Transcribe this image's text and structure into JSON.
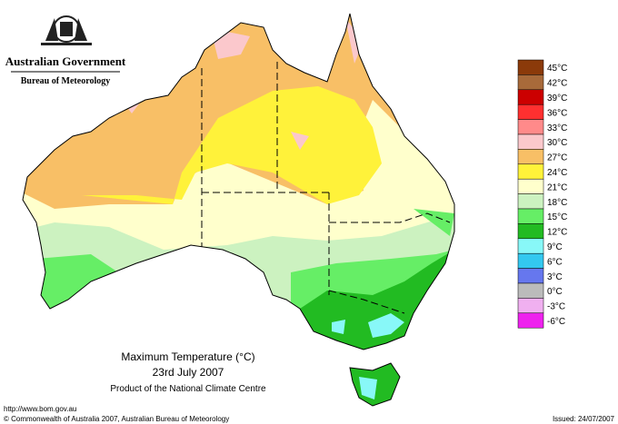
{
  "header": {
    "government": "Australian Government",
    "agency": "Bureau of Meteorology"
  },
  "map": {
    "title": "Maximum Temperature (°C)",
    "date": "23rd July 2007",
    "product": "Product of the National Climate Centre"
  },
  "legend": {
    "items": [
      {
        "label": "45°C",
        "color": "#8b3a0a"
      },
      {
        "label": "42°C",
        "color": "#a86a3a"
      },
      {
        "label": "39°C",
        "color": "#cc0000"
      },
      {
        "label": "36°C",
        "color": "#ff3030"
      },
      {
        "label": "33°C",
        "color": "#ff8a8a"
      },
      {
        "label": "30°C",
        "color": "#fbc8cc"
      },
      {
        "label": "27°C",
        "color": "#f8bf66"
      },
      {
        "label": "24°C",
        "color": "#fff23a"
      },
      {
        "label": "21°C",
        "color": "#ffffcc"
      },
      {
        "label": "18°C",
        "color": "#ccf2c0"
      },
      {
        "label": "15°C",
        "color": "#66ee66"
      },
      {
        "label": "12°C",
        "color": "#22bb22"
      },
      {
        "label": "9°C",
        "color": "#88f8f8"
      },
      {
        "label": "6°C",
        "color": "#33c8f0"
      },
      {
        "label": "3°C",
        "color": "#6677ee"
      },
      {
        "label": "0°C",
        "color": "#bbbbbb"
      },
      {
        "label": "-3°C",
        "color": "#f0b0f0"
      },
      {
        "label": "-6°C",
        "color": "#ee22ee"
      }
    ]
  },
  "footer": {
    "url": "http://www.bom.gov.au",
    "copyright": "© Commonwealth of Australia 2007, Australian Bureau of Meteorology",
    "issued": "Issued: 24/07/2007"
  }
}
